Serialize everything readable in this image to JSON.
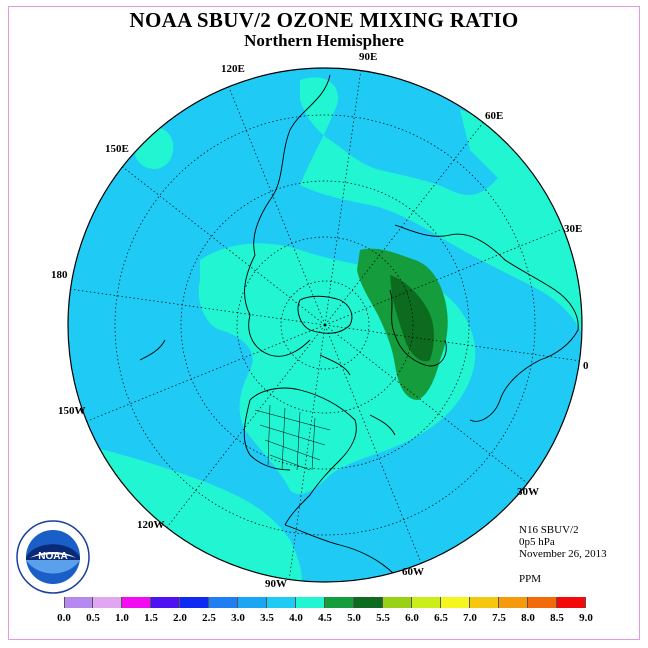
{
  "title": "NOAA SBUV/2 OZONE MIXING RATIO",
  "subtitle": "Northern Hemisphere",
  "longitude_labels": [
    "90E",
    "60E",
    "30E",
    "0",
    "30W",
    "60W",
    "90W",
    "120W",
    "150W",
    "180",
    "150E",
    "120E"
  ],
  "info": {
    "instrument": "N16 SBUV/2",
    "pressure": "0p5 hPa",
    "date": "November 26, 2013",
    "units": "PPM"
  },
  "colorbar": {
    "ticks": [
      "0.0",
      "0.5",
      "1.0",
      "1.5",
      "2.0",
      "2.5",
      "3.0",
      "3.5",
      "4.0",
      "4.5",
      "5.0",
      "5.5",
      "6.0",
      "6.5",
      "7.0",
      "7.5",
      "8.0",
      "8.5",
      "9.0"
    ],
    "colors": [
      "#b689f0",
      "#e1a6f2",
      "#f20cf2",
      "#4c12f2",
      "#0d29f2",
      "#1f7ef2",
      "#1aa6f2",
      "#1fcbf5",
      "#21f5d2",
      "#159c3c",
      "#0c6b1e",
      "#99d214",
      "#cbee1a",
      "#f5f51f",
      "#f5c80f",
      "#f59a0d",
      "#f26a0a",
      "#f20a0a",
      "#7f4a22"
    ]
  },
  "map_fields": {
    "background_level": "3.0-3.5",
    "regions": [
      "3.5-4.0",
      "4.0-4.5",
      "4.5-5.0"
    ]
  },
  "logo": {
    "wordmark": "NOAA",
    "ring_text": "NATIONAL OCEANIC AND ATMOSPHERIC ADMINISTRATION · U.S. DEPARTMENT OF COMMERCE"
  }
}
